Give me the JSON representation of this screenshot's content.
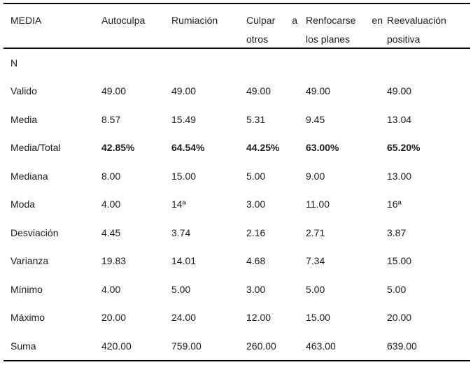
{
  "table": {
    "header": {
      "col1": "MEDIA",
      "col2": "Autoculpa",
      "col3": "Rumiación",
      "col4": {
        "line1_w1": "Culpar",
        "line1_w2": "a",
        "line2": "otros"
      },
      "col5": {
        "line1_w1": "Renfocarse",
        "line1_w2": "en",
        "line2": "los planes"
      },
      "col6": {
        "line1": "Reevaluación",
        "line2": "positiva"
      }
    },
    "section_label": "N",
    "rows": [
      {
        "label": "Valido",
        "values": [
          "49.00",
          "49.00",
          "49.00",
          "49.00",
          "49.00"
        ]
      },
      {
        "label": "Media",
        "values": [
          "8.57",
          "15.49",
          "5.31",
          "9.45",
          "13.04"
        ]
      },
      {
        "label": "Media/Total",
        "values": [
          "42.85%",
          "64.54%",
          "44.25%",
          "63.00%",
          "65.20%"
        ],
        "bold": true
      },
      {
        "label": "Mediana",
        "values": [
          "8.00",
          "15.00",
          "5.00",
          "9.00",
          "13.00"
        ]
      },
      {
        "label": "Moda",
        "values": [
          "4.00",
          "14ª",
          "3.00",
          "11.00",
          "16ª"
        ]
      },
      {
        "label": "Desviación",
        "values": [
          "4.45",
          "3.74",
          "2.16",
          "2.71",
          "3.87"
        ]
      },
      {
        "label": "Varianza",
        "values": [
          "19.83",
          "14.01",
          "4.68",
          "7.34",
          "15.00"
        ]
      },
      {
        "label": "Mínimo",
        "values": [
          "4.00",
          "5.00",
          "3.00",
          "5.00",
          "5.00"
        ]
      },
      {
        "label": "Máximo",
        "values": [
          "20.00",
          "24.00",
          "12.00",
          "15.00",
          "20.00"
        ]
      },
      {
        "label": "Suma",
        "values": [
          "420.00",
          "759.00",
          "260.00",
          "463.00",
          "639.00"
        ]
      }
    ],
    "rule_color": "#000000",
    "text_color": "#1c1c1c"
  }
}
